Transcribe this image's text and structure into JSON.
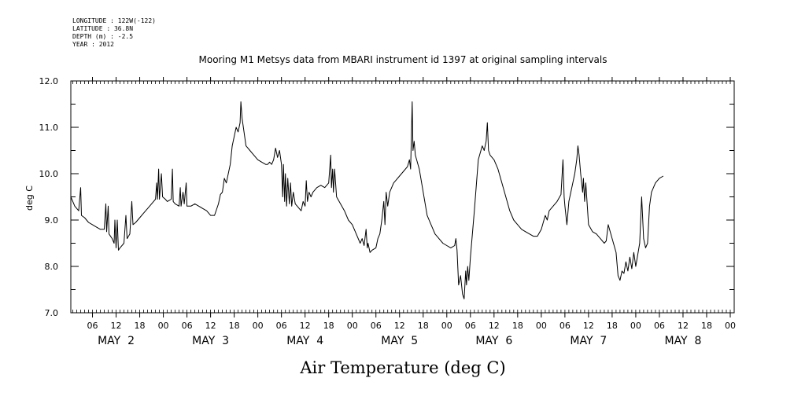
{
  "header": {
    "longitude": "LONGITUDE : 122W(-122)",
    "latitude": "LATITUDE : 36.8N",
    "depth": "DEPTH (m) : -2.5",
    "year": "YEAR : 2012"
  },
  "chart_data": {
    "type": "line",
    "title": "Mooring M1 Metsys data from MBARI instrument id 1397 at original sampling intervals",
    "xlabel": "Air Temperature (deg C)",
    "ylabel": "deg C",
    "x_units": "hours since 2012-05-02 00:00",
    "xlim": [
      -11.5,
      157
    ],
    "ylim": [
      7.0,
      12.0
    ],
    "y_ticks": [
      "7.0",
      "8.0",
      "9.0",
      "10.0",
      "11.0",
      "12.0"
    ],
    "x_hour_ticks": [
      {
        "x": -6,
        "label": "06"
      },
      {
        "x": 0,
        "label": "12"
      },
      {
        "x": 6,
        "label": "18"
      },
      {
        "x": 12,
        "label": "00"
      },
      {
        "x": 18,
        "label": "06"
      },
      {
        "x": 24,
        "label": "12"
      },
      {
        "x": 30,
        "label": "18"
      },
      {
        "x": 36,
        "label": "00"
      },
      {
        "x": 42,
        "label": "06"
      },
      {
        "x": 48,
        "label": "12"
      },
      {
        "x": 54,
        "label": "18"
      },
      {
        "x": 60,
        "label": "00"
      },
      {
        "x": 66,
        "label": "06"
      },
      {
        "x": 72,
        "label": "12"
      },
      {
        "x": 78,
        "label": "18"
      },
      {
        "x": 84,
        "label": "00"
      },
      {
        "x": 90,
        "label": "06"
      },
      {
        "x": 96,
        "label": "12"
      },
      {
        "x": 102,
        "label": "18"
      },
      {
        "x": 108,
        "label": "00"
      },
      {
        "x": 114,
        "label": "06"
      },
      {
        "x": 120,
        "label": "12"
      },
      {
        "x": 126,
        "label": "18"
      },
      {
        "x": 132,
        "label": "00"
      },
      {
        "x": 138,
        "label": "06"
      },
      {
        "x": 144,
        "label": "12"
      },
      {
        "x": 150,
        "label": "18"
      },
      {
        "x": 156,
        "label": "00"
      }
    ],
    "x_day_labels": [
      {
        "x": 0,
        "label": "MAY  2"
      },
      {
        "x": 24,
        "label": "MAY  3"
      },
      {
        "x": 48,
        "label": "MAY  4"
      },
      {
        "x": 72,
        "label": "MAY  5"
      },
      {
        "x": 96,
        "label": "MAY  6"
      },
      {
        "x": 120,
        "label": "MAY  7"
      },
      {
        "x": 144,
        "label": "MAY  8"
      }
    ],
    "series": [
      {
        "color": "#000000",
        "points": [
          [
            -11.5,
            9.5
          ],
          [
            -10.5,
            9.3
          ],
          [
            -9.5,
            9.2
          ],
          [
            -9.0,
            9.7
          ],
          [
            -8.8,
            9.1
          ],
          [
            -8,
            9.05
          ],
          [
            -7,
            8.95
          ],
          [
            -6,
            8.9
          ],
          [
            -5,
            8.85
          ],
          [
            -4,
            8.8
          ],
          [
            -3,
            8.8
          ],
          [
            -2.6,
            9.35
          ],
          [
            -2.4,
            8.75
          ],
          [
            -2,
            9.3
          ],
          [
            -1.8,
            8.7
          ],
          [
            -1,
            8.6
          ],
          [
            -0.5,
            8.5
          ],
          [
            -0.3,
            9.0
          ],
          [
            0,
            8.4
          ],
          [
            0.3,
            9.0
          ],
          [
            0.6,
            8.35
          ],
          [
            1,
            8.4
          ],
          [
            2,
            8.5
          ],
          [
            2.5,
            9.1
          ],
          [
            2.8,
            8.6
          ],
          [
            3.5,
            8.7
          ],
          [
            4,
            9.4
          ],
          [
            4.3,
            8.9
          ],
          [
            5,
            8.95
          ],
          [
            6,
            9.05
          ],
          [
            7,
            9.15
          ],
          [
            8,
            9.25
          ],
          [
            9,
            9.35
          ],
          [
            10,
            9.45
          ],
          [
            10.3,
            9.8
          ],
          [
            10.5,
            9.45
          ],
          [
            10.8,
            10.1
          ],
          [
            11,
            9.45
          ],
          [
            11.5,
            10.0
          ],
          [
            11.8,
            9.5
          ],
          [
            12.5,
            9.45
          ],
          [
            13,
            9.4
          ],
          [
            14,
            9.45
          ],
          [
            14.3,
            10.1
          ],
          [
            14.5,
            9.4
          ],
          [
            15,
            9.35
          ],
          [
            16,
            9.3
          ],
          [
            16.3,
            9.7
          ],
          [
            16.5,
            9.3
          ],
          [
            17,
            9.6
          ],
          [
            17.3,
            9.35
          ],
          [
            17.8,
            9.8
          ],
          [
            18,
            9.3
          ],
          [
            19,
            9.3
          ],
          [
            20,
            9.35
          ],
          [
            21,
            9.3
          ],
          [
            22,
            9.25
          ],
          [
            23,
            9.2
          ],
          [
            24,
            9.1
          ],
          [
            25,
            9.1
          ],
          [
            26,
            9.35
          ],
          [
            26.5,
            9.55
          ],
          [
            27,
            9.6
          ],
          [
            27.5,
            9.9
          ],
          [
            28,
            9.8
          ],
          [
            28.5,
            10.0
          ],
          [
            29,
            10.2
          ],
          [
            29.5,
            10.6
          ],
          [
            30,
            10.8
          ],
          [
            30.5,
            11.0
          ],
          [
            31,
            10.9
          ],
          [
            31.5,
            11.1
          ],
          [
            31.7,
            11.55
          ],
          [
            32,
            11.2
          ],
          [
            32.5,
            10.9
          ],
          [
            33,
            10.6
          ],
          [
            34,
            10.5
          ],
          [
            35,
            10.4
          ],
          [
            36,
            10.3
          ],
          [
            37,
            10.25
          ],
          [
            38,
            10.2
          ],
          [
            38.5,
            10.2
          ],
          [
            39,
            10.25
          ],
          [
            39.5,
            10.2
          ],
          [
            40,
            10.3
          ],
          [
            40.5,
            10.55
          ],
          [
            41,
            10.35
          ],
          [
            41.5,
            10.5
          ],
          [
            42,
            10.2
          ],
          [
            42.3,
            9.5
          ],
          [
            42.5,
            10.2
          ],
          [
            42.8,
            9.4
          ],
          [
            43,
            10.0
          ],
          [
            43.3,
            9.3
          ],
          [
            43.6,
            9.9
          ],
          [
            44,
            9.35
          ],
          [
            44.3,
            9.8
          ],
          [
            44.6,
            9.3
          ],
          [
            45,
            9.6
          ],
          [
            45.5,
            9.35
          ],
          [
            46,
            9.3
          ],
          [
            46.5,
            9.25
          ],
          [
            47,
            9.2
          ],
          [
            47.5,
            9.4
          ],
          [
            48,
            9.3
          ],
          [
            48.3,
            9.85
          ],
          [
            48.6,
            9.4
          ],
          [
            49,
            9.6
          ],
          [
            49.5,
            9.5
          ],
          [
            50,
            9.6
          ],
          [
            51,
            9.7
          ],
          [
            52,
            9.75
          ],
          [
            53,
            9.7
          ],
          [
            54,
            9.8
          ],
          [
            54.5,
            10.4
          ],
          [
            54.7,
            9.7
          ],
          [
            55,
            10.1
          ],
          [
            55.2,
            9.6
          ],
          [
            55.5,
            10.1
          ],
          [
            56,
            9.5
          ],
          [
            57,
            9.35
          ],
          [
            58,
            9.2
          ],
          [
            59,
            9.0
          ],
          [
            60,
            8.9
          ],
          [
            61,
            8.7
          ],
          [
            62,
            8.5
          ],
          [
            62.5,
            8.6
          ],
          [
            63,
            8.45
          ],
          [
            63.5,
            8.8
          ],
          [
            63.8,
            8.4
          ],
          [
            64,
            8.5
          ],
          [
            64.5,
            8.3
          ],
          [
            65,
            8.35
          ],
          [
            66,
            8.4
          ],
          [
            66.5,
            8.6
          ],
          [
            67,
            8.7
          ],
          [
            67.5,
            9.0
          ],
          [
            68,
            9.4
          ],
          [
            68.3,
            8.9
          ],
          [
            68.6,
            9.6
          ],
          [
            69,
            9.3
          ],
          [
            69.5,
            9.6
          ],
          [
            70,
            9.7
          ],
          [
            70.5,
            9.8
          ],
          [
            71,
            9.85
          ],
          [
            72,
            9.95
          ],
          [
            73,
            10.05
          ],
          [
            74,
            10.15
          ],
          [
            74.5,
            10.3
          ],
          [
            74.8,
            10.1
          ],
          [
            75.2,
            11.55
          ],
          [
            75.4,
            10.5
          ],
          [
            75.7,
            10.7
          ],
          [
            76,
            10.4
          ],
          [
            77,
            10.1
          ],
          [
            78,
            9.6
          ],
          [
            79,
            9.1
          ],
          [
            80,
            8.9
          ],
          [
            81,
            8.7
          ],
          [
            82,
            8.6
          ],
          [
            83,
            8.5
          ],
          [
            84,
            8.45
          ],
          [
            85,
            8.4
          ],
          [
            86,
            8.45
          ],
          [
            86.3,
            8.6
          ],
          [
            86.6,
            8.35
          ],
          [
            87,
            7.6
          ],
          [
            87.5,
            7.8
          ],
          [
            88,
            7.4
          ],
          [
            88.4,
            7.3
          ],
          [
            88.8,
            7.9
          ],
          [
            89,
            7.6
          ],
          [
            89.3,
            8.0
          ],
          [
            89.6,
            7.7
          ],
          [
            90,
            8.2
          ],
          [
            91,
            9.2
          ],
          [
            92,
            10.3
          ],
          [
            93,
            10.6
          ],
          [
            93.5,
            10.5
          ],
          [
            94,
            10.7
          ],
          [
            94.3,
            11.1
          ],
          [
            94.6,
            10.5
          ],
          [
            95,
            10.4
          ],
          [
            96,
            10.3
          ],
          [
            97,
            10.1
          ],
          [
            98,
            9.8
          ],
          [
            99,
            9.5
          ],
          [
            100,
            9.2
          ],
          [
            101,
            9.0
          ],
          [
            102,
            8.9
          ],
          [
            103,
            8.8
          ],
          [
            104,
            8.75
          ],
          [
            105,
            8.7
          ],
          [
            106,
            8.65
          ],
          [
            107,
            8.65
          ],
          [
            108,
            8.8
          ],
          [
            109,
            9.1
          ],
          [
            109.5,
            9.0
          ],
          [
            110,
            9.2
          ],
          [
            111,
            9.3
          ],
          [
            112,
            9.4
          ],
          [
            113,
            9.55
          ],
          [
            113.5,
            10.3
          ],
          [
            113.8,
            9.5
          ],
          [
            114,
            9.3
          ],
          [
            114.5,
            8.9
          ],
          [
            115,
            9.4
          ],
          [
            115.5,
            9.6
          ],
          [
            116,
            9.8
          ],
          [
            116.5,
            10.0
          ],
          [
            117,
            10.3
          ],
          [
            117.3,
            10.6
          ],
          [
            117.6,
            10.4
          ],
          [
            118,
            10.0
          ],
          [
            118.5,
            9.6
          ],
          [
            118.7,
            9.9
          ],
          [
            119,
            9.4
          ],
          [
            119.3,
            9.8
          ],
          [
            120,
            8.9
          ],
          [
            121,
            8.75
          ],
          [
            122,
            8.7
          ],
          [
            123,
            8.6
          ],
          [
            124,
            8.5
          ],
          [
            124.5,
            8.55
          ],
          [
            125,
            8.9
          ],
          [
            126,
            8.6
          ],
          [
            127,
            8.3
          ],
          [
            127.5,
            7.8
          ],
          [
            128,
            7.7
          ],
          [
            128.5,
            7.9
          ],
          [
            129,
            7.85
          ],
          [
            129.5,
            8.1
          ],
          [
            130,
            7.9
          ],
          [
            130.5,
            8.2
          ],
          [
            131,
            7.95
          ],
          [
            131.5,
            8.3
          ],
          [
            132,
            8.0
          ],
          [
            133,
            8.5
          ],
          [
            133.5,
            9.5
          ],
          [
            134,
            8.6
          ],
          [
            134.5,
            8.4
          ],
          [
            135,
            8.5
          ],
          [
            135.5,
            9.3
          ],
          [
            136,
            9.6
          ],
          [
            137,
            9.8
          ],
          [
            138,
            9.9
          ],
          [
            139,
            9.95
          ]
        ]
      }
    ]
  }
}
